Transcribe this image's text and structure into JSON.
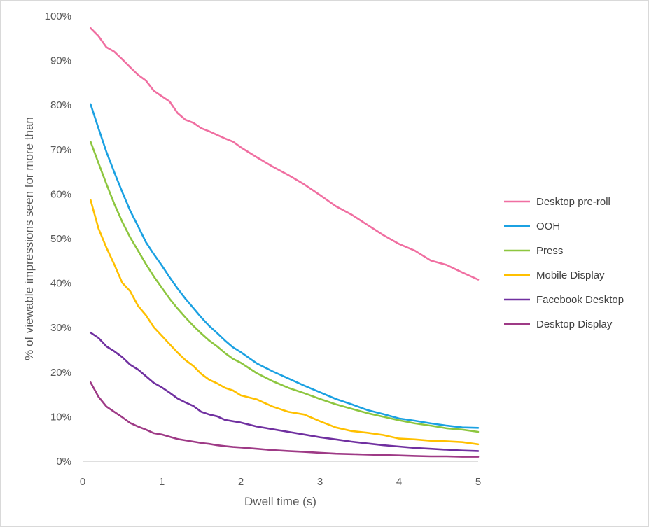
{
  "chart_data": {
    "type": "line",
    "title": "",
    "xlabel": "Dwell time (s)",
    "ylabel": "% of viewable impressions seen for more than",
    "xlim": [
      0,
      5
    ],
    "ylim": [
      0,
      100
    ],
    "x_ticks": [
      "0",
      "1",
      "2",
      "3",
      "4",
      "5"
    ],
    "y_ticks": [
      "0%",
      "10%",
      "20%",
      "30%",
      "40%",
      "50%",
      "60%",
      "70%",
      "80%",
      "90%",
      "100%"
    ],
    "grid": false,
    "legend_position": "right",
    "x": [
      0.1,
      0.2,
      0.3,
      0.4,
      0.5,
      0.6,
      0.7,
      0.8,
      0.9,
      1.0,
      1.1,
      1.2,
      1.3,
      1.4,
      1.5,
      1.6,
      1.7,
      1.8,
      1.9,
      2.0,
      2.2,
      2.4,
      2.6,
      2.8,
      3.0,
      3.2,
      3.4,
      3.6,
      3.8,
      4.0,
      4.2,
      4.4,
      4.6,
      4.8,
      5.0
    ],
    "series": [
      {
        "name": "Desktop pre-roll",
        "color": "#f06fa1",
        "values": [
          97.3,
          95.5,
          93.0,
          92.0,
          90.3,
          88.5,
          86.8,
          85.5,
          83.2,
          82.0,
          80.8,
          78.2,
          76.7,
          76.0,
          74.8,
          74.1,
          73.3,
          72.5,
          71.8,
          70.5,
          68.3,
          66.2,
          64.3,
          62.2,
          59.8,
          57.3,
          55.4,
          53.1,
          50.8,
          48.8,
          47.3,
          45.1,
          44.1,
          42.4,
          40.8
        ]
      },
      {
        "name": "OOH",
        "color": "#1ba1e2",
        "values": [
          80.2,
          74.8,
          69.5,
          64.9,
          60.5,
          56.3,
          52.8,
          49.2,
          46.5,
          44.0,
          41.3,
          38.8,
          36.5,
          34.4,
          32.3,
          30.4,
          28.8,
          27.1,
          25.6,
          24.5,
          22.0,
          20.2,
          18.6,
          17.0,
          15.5,
          14.0,
          12.8,
          11.5,
          10.6,
          9.6,
          9.1,
          8.5,
          8.0,
          7.6,
          7.5
        ]
      },
      {
        "name": "Press",
        "color": "#8dc63f",
        "values": [
          71.8,
          67.0,
          62.3,
          57.8,
          53.8,
          50.3,
          47.3,
          44.3,
          41.5,
          39.0,
          36.5,
          34.3,
          32.3,
          30.4,
          28.7,
          27.1,
          25.8,
          24.3,
          23.0,
          22.1,
          19.8,
          18.0,
          16.5,
          15.3,
          14.0,
          12.8,
          11.8,
          10.8,
          10.0,
          9.2,
          8.5,
          8.0,
          7.4,
          7.1,
          6.6
        ]
      },
      {
        "name": "Mobile Display",
        "color": "#ffc000",
        "values": [
          58.7,
          52.3,
          48.0,
          44.2,
          40.1,
          38.2,
          34.9,
          32.8,
          30.1,
          28.2,
          26.3,
          24.4,
          22.7,
          21.4,
          19.6,
          18.3,
          17.5,
          16.5,
          15.9,
          14.8,
          13.9,
          12.3,
          11.1,
          10.5,
          9.0,
          7.6,
          6.8,
          6.4,
          5.9,
          5.1,
          4.9,
          4.6,
          4.5,
          4.3,
          3.8
        ]
      },
      {
        "name": "Facebook Desktop",
        "color": "#7030a0",
        "values": [
          28.9,
          27.7,
          25.8,
          24.7,
          23.4,
          21.7,
          20.6,
          19.1,
          17.6,
          16.6,
          15.4,
          14.1,
          13.2,
          12.4,
          11.1,
          10.5,
          10.1,
          9.3,
          9.0,
          8.7,
          7.8,
          7.2,
          6.6,
          6.0,
          5.4,
          4.9,
          4.4,
          4.0,
          3.6,
          3.3,
          3.0,
          2.8,
          2.6,
          2.4,
          2.3
        ]
      },
      {
        "name": "Desktop Display",
        "color": "#9e3a86",
        "values": [
          17.7,
          14.5,
          12.3,
          11.1,
          9.9,
          8.6,
          7.8,
          7.1,
          6.3,
          6.0,
          5.5,
          5.0,
          4.7,
          4.4,
          4.1,
          3.9,
          3.6,
          3.4,
          3.2,
          3.1,
          2.8,
          2.5,
          2.3,
          2.1,
          1.9,
          1.7,
          1.6,
          1.5,
          1.4,
          1.3,
          1.2,
          1.1,
          1.1,
          1.0,
          1.0
        ]
      }
    ]
  }
}
